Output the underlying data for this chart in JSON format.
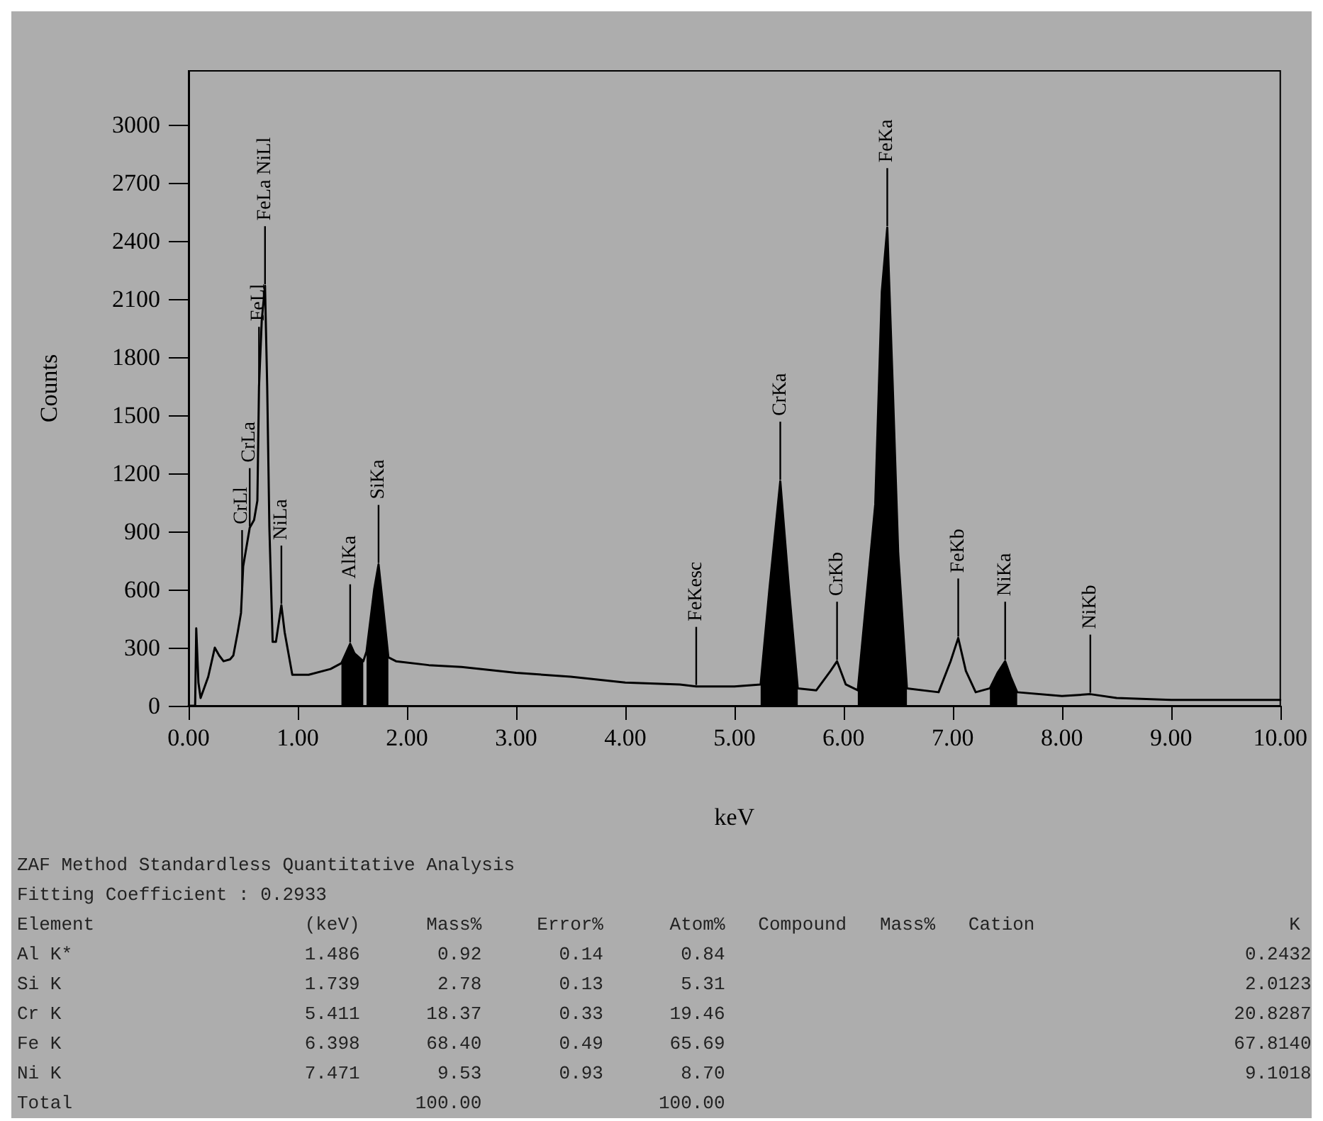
{
  "chart_data": {
    "type": "line",
    "xlabel": "keV",
    "ylabel": "Counts",
    "xlim": [
      0,
      10
    ],
    "ylim": [
      0,
      3280
    ],
    "xticks": [
      {
        "value": 0,
        "label": "0.00"
      },
      {
        "value": 1,
        "label": "1.00"
      },
      {
        "value": 2,
        "label": "2.00"
      },
      {
        "value": 3,
        "label": "3.00"
      },
      {
        "value": 4,
        "label": "4.00"
      },
      {
        "value": 5,
        "label": "5.00"
      },
      {
        "value": 6,
        "label": "6.00"
      },
      {
        "value": 7,
        "label": "7.00"
      },
      {
        "value": 8,
        "label": "8.00"
      },
      {
        "value": 9,
        "label": "9.00"
      },
      {
        "value": 10,
        "label": "10.00"
      }
    ],
    "yticks": [
      0,
      300,
      600,
      900,
      1200,
      1500,
      1800,
      2100,
      2400,
      2700,
      3000
    ],
    "grid": false,
    "marker": "none",
    "line_style": "solid",
    "series": [
      {
        "type": "line",
        "color": "#000000",
        "x": [
          0,
          0.06,
          0.07,
          0.09,
          0.11,
          0.18,
          0.24,
          0.28,
          0.32,
          0.38,
          0.41,
          0.45,
          0.48,
          0.49,
          0.5,
          0.56,
          0.6,
          0.63,
          0.645,
          0.67,
          0.7,
          0.72,
          0.74,
          0.77,
          0.8,
          0.85,
          0.88,
          0.95,
          1.1,
          1.3,
          1.4,
          1.44,
          1.48,
          1.52,
          1.6,
          1.63,
          1.7,
          1.74,
          1.78,
          1.83,
          1.9,
          2.2,
          2.5,
          3,
          3.5,
          4,
          4.5,
          4.65,
          5,
          5.24,
          5.32,
          5.42,
          5.5,
          5.58,
          5.75,
          5.88,
          5.94,
          6.02,
          6.13,
          6.29,
          6.35,
          6.4,
          6.45,
          6.5,
          6.58,
          6.87,
          6.98,
          7.05,
          7.12,
          7.21,
          7.34,
          7.41,
          7.48,
          7.53,
          7.59,
          8,
          8.26,
          8.5,
          9,
          10
        ],
        "values": [
          0,
          0,
          400,
          120,
          40,
          150,
          300,
          260,
          230,
          240,
          260,
          380,
          480,
          600,
          720,
          920,
          960,
          1060,
          1650,
          1990,
          2170,
          1650,
          920,
          330,
          330,
          520,
          380,
          160,
          160,
          190,
          220,
          270,
          320,
          270,
          230,
          280,
          600,
          730,
          520,
          250,
          230,
          210,
          200,
          170,
          150,
          120,
          110,
          100,
          100,
          110,
          600,
          1160,
          600,
          90,
          80,
          180,
          230,
          110,
          80,
          1040,
          2140,
          2470,
          1650,
          790,
          90,
          70,
          230,
          350,
          180,
          70,
          90,
          170,
          230,
          150,
          70,
          50,
          60,
          40,
          30,
          30
        ]
      },
      {
        "type": "area",
        "color": "#000000",
        "x": [
          1.4,
          1.44,
          1.48,
          1.52,
          1.6,
          1.615,
          1.63,
          1.7,
          1.74,
          1.78,
          1.83,
          3.5,
          5.24,
          5.32,
          5.42,
          5.5,
          5.58,
          6,
          6.13,
          6.29,
          6.35,
          6.4,
          6.45,
          6.5,
          6.58,
          7,
          7.34,
          7.41,
          7.48,
          7.53,
          7.59
        ],
        "values": [
          220,
          270,
          320,
          270,
          230,
          null,
          280,
          600,
          730,
          520,
          250,
          null,
          110,
          600,
          1160,
          600,
          90,
          null,
          80,
          1040,
          2140,
          2470,
          1650,
          790,
          90,
          null,
          90,
          170,
          230,
          150,
          70
        ]
      }
    ],
    "annotations": [
      {
        "text": "CrLl",
        "x": 0.49,
        "y": 600
      },
      {
        "text": "CrLa",
        "x": 0.56,
        "y": 920
      },
      {
        "text": "FeLl",
        "x": 0.645,
        "y": 1650
      },
      {
        "text": "FeLa NiLl",
        "x": 0.7,
        "y": 2170
      },
      {
        "text": "NiLa",
        "x": 0.85,
        "y": 520
      },
      {
        "text": "AlKa",
        "x": 1.48,
        "y": 320
      },
      {
        "text": "SiKa",
        "x": 1.74,
        "y": 730
      },
      {
        "text": "FeKesc",
        "x": 4.65,
        "y": 100
      },
      {
        "text": "CrKa",
        "x": 5.42,
        "y": 1160
      },
      {
        "text": "CrKb",
        "x": 5.94,
        "y": 230
      },
      {
        "text": "FeKa",
        "x": 6.4,
        "y": 2470
      },
      {
        "text": "FeKb",
        "x": 7.05,
        "y": 350
      },
      {
        "text": "NiKa",
        "x": 7.48,
        "y": 230
      },
      {
        "text": "NiKb",
        "x": 8.26,
        "y": 60
      },
      "ZAF Method Standardless Quantitative Analysis",
      "Fitting Coefficient : 0.2933",
      "Element                   (keV)      Mass%     Error%      Atom%   Compound   Mass%   Cation                       K",
      "Al K*                     1.486       0.92       0.14       0.84                                               0.2432",
      "Si K                      1.739       2.78       0.13       5.31                                               2.0123",
      "Cr K                      5.411      18.37       0.33      19.46                                              20.8287",
      "Fe K                      6.398      68.40       0.49      65.69                                              67.8140",
      "Ni K                      7.471       9.53       0.93       8.70                                               9.1018",
      "Total                               100.00                100.00"
    ]
  }
}
